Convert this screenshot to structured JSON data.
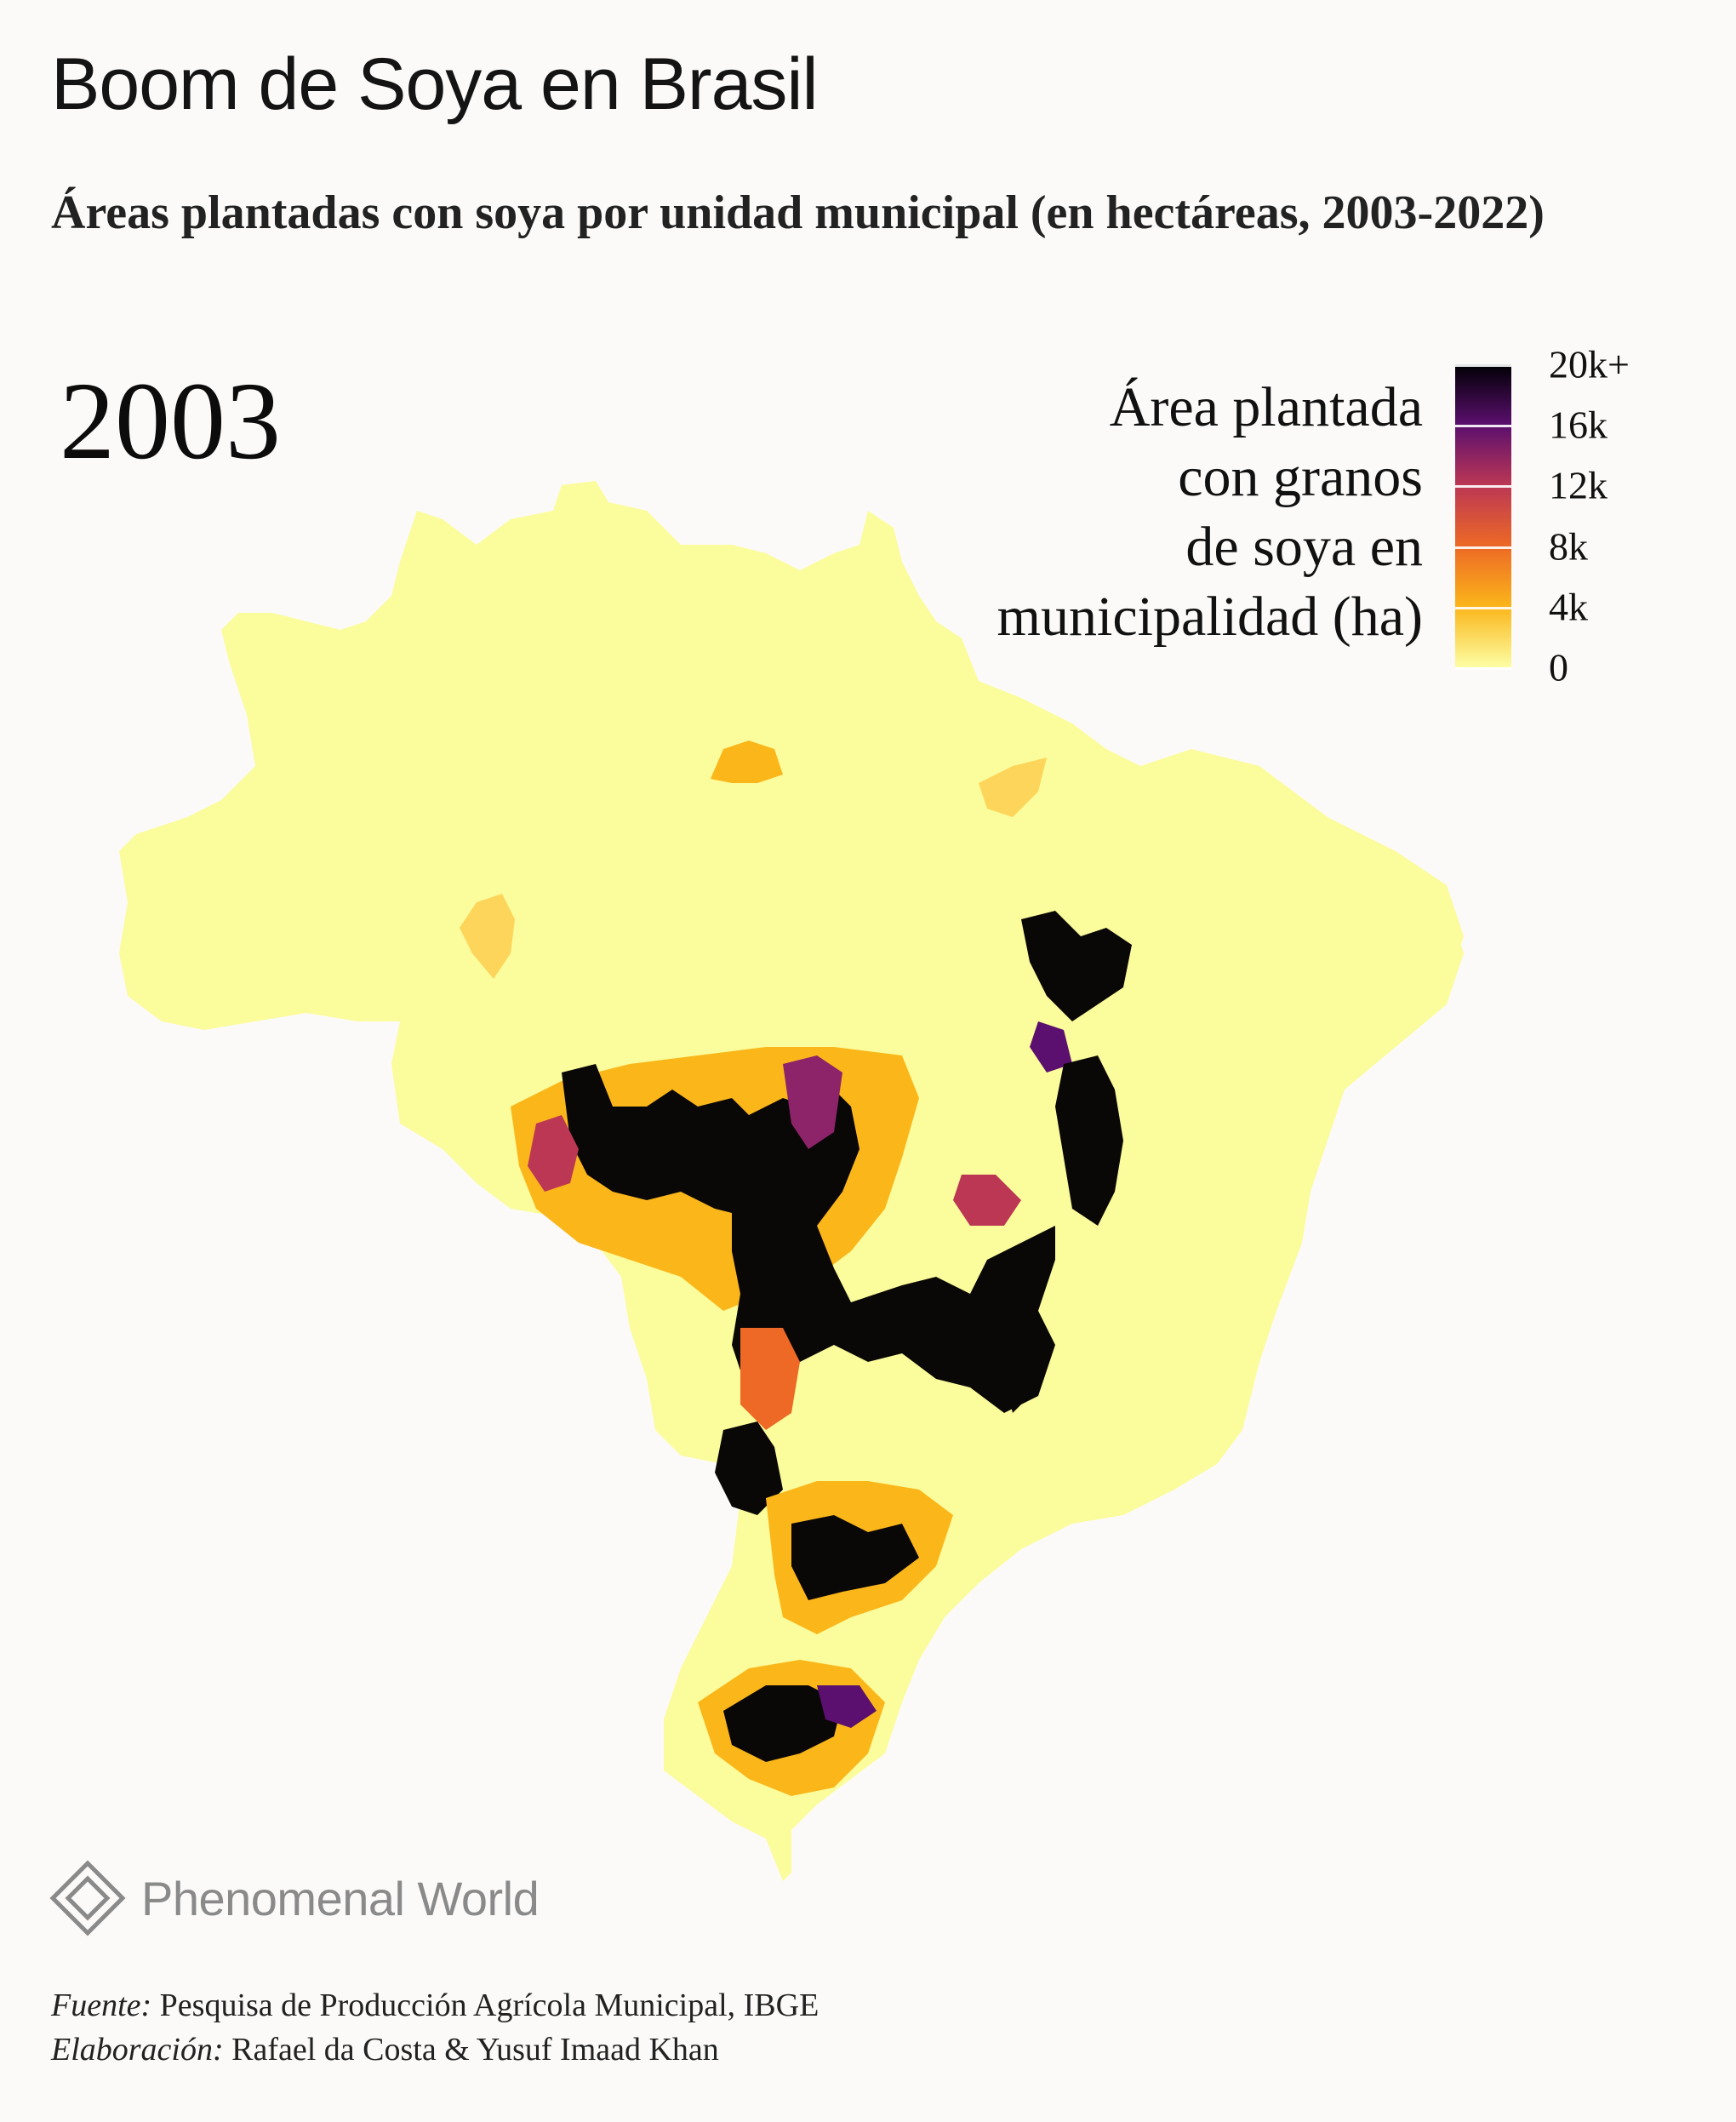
{
  "title": "Boom de Soya en Brasil",
  "subtitle": "Áreas plantadas con soya por unidad municipal (en hectáreas, 2003-2022)",
  "year": "2003",
  "legend": {
    "title_lines": [
      "Área plantada",
      "con granos",
      "de soya en",
      "municipalidad (ha)"
    ],
    "ticks": [
      {
        "label": "20k+",
        "value": 20000
      },
      {
        "label": "16k",
        "value": 16000
      },
      {
        "label": "12k",
        "value": 12000
      },
      {
        "label": "8k",
        "value": 8000
      },
      {
        "label": "4k",
        "value": 4000
      },
      {
        "label": "0",
        "value": 0
      }
    ],
    "colors": [
      "#fcfea4",
      "#fbb61a",
      "#ed6925",
      "#bc3754",
      "#5b0f6e",
      "#000004"
    ]
  },
  "logo": {
    "text": "Phenomenal World",
    "icon": "diamond-logo-icon"
  },
  "credits": {
    "source_label": "Fuente:",
    "source_text": "Pesquisa de Producción Agrícola Municipal, IBGE",
    "author_label": "Elaboración:",
    "author_text": "Rafael da Costa & Yusuf Imaad Khan"
  }
}
